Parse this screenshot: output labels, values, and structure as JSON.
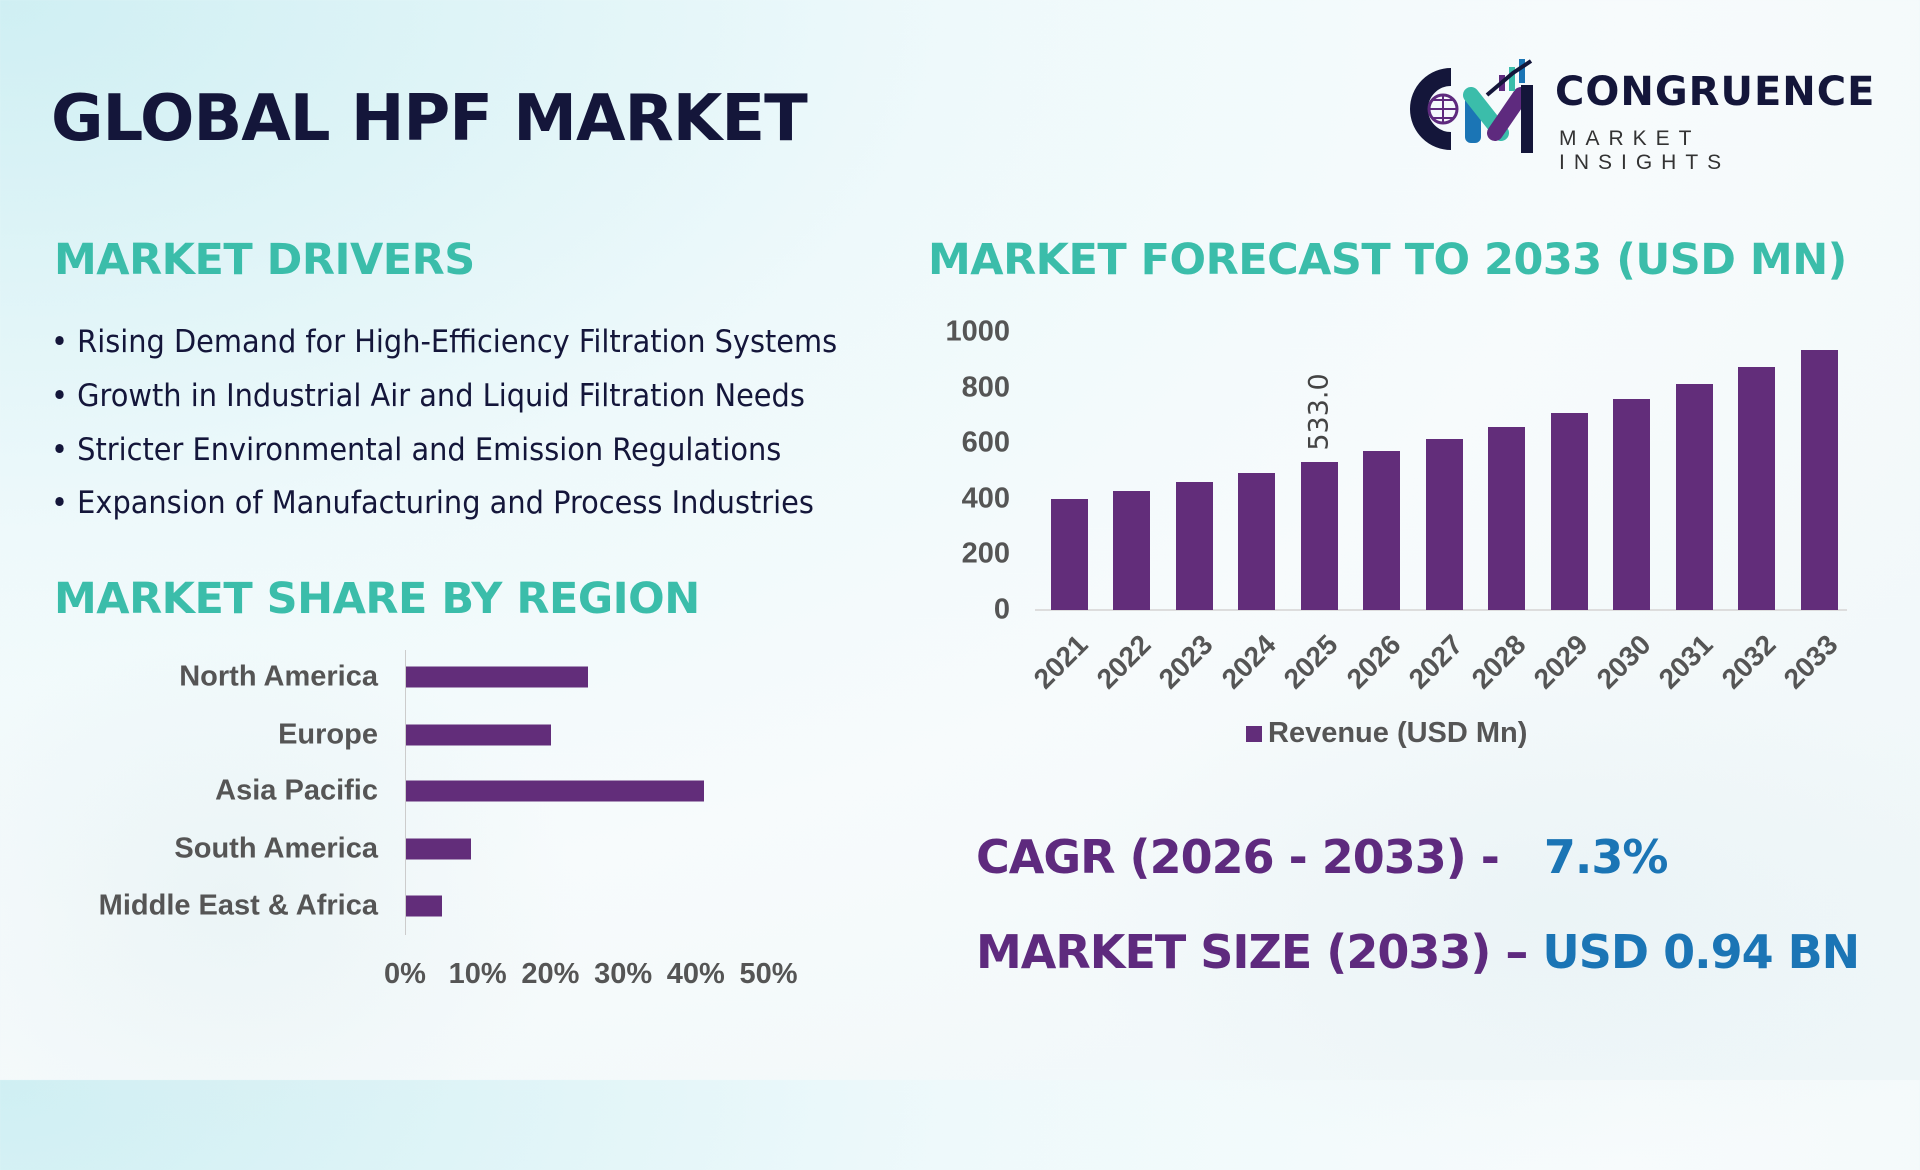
{
  "title": "GLOBAL HPF MARKET",
  "logo": {
    "name": "CONGRUENCE",
    "tagline": "MARKET INSIGHTS"
  },
  "drivers": {
    "heading": "MARKET DRIVERS",
    "items": [
      "• Rising Demand for High-Efficiency Filtration Systems",
      "• Growth in Industrial Air and Liquid Filtration Needs",
      "• Stricter Environmental and Emission Regulations",
      "• Expansion of Manufacturing and Process Industries"
    ]
  },
  "colors": {
    "bar": "#622d7a",
    "heading": "#3bbdaa",
    "title": "#14163a",
    "kpi_value": "#1b75b5"
  },
  "chart_data": [
    {
      "type": "bar",
      "orientation": "horizontal",
      "title": "MARKET SHARE BY REGION",
      "categories": [
        "North America",
        "Europe",
        "Asia Pacific",
        "South America",
        "Middle East & Africa"
      ],
      "values": [
        25,
        20,
        41,
        9,
        5
      ],
      "unit": "%",
      "xlim": [
        0,
        50
      ],
      "xticks": [
        "0%",
        "10%",
        "20%",
        "30%",
        "40%",
        "50%"
      ],
      "grid": false
    },
    {
      "type": "bar",
      "title": "MARKET FORECAST TO 2033 (USD MN)",
      "categories": [
        "2021",
        "2022",
        "2023",
        "2024",
        "2025",
        "2026",
        "2027",
        "2028",
        "2029",
        "2030",
        "2031",
        "2032",
        "2033"
      ],
      "series": [
        {
          "name": "Revenue (USD Mn)",
          "values": [
            400,
            428,
            459,
            494,
            533,
            572,
            614,
            659,
            707,
            758,
            814,
            873,
            937
          ]
        }
      ],
      "ylim": [
        0,
        1000
      ],
      "yticks": [
        "0",
        "200",
        "400",
        "600",
        "800",
        "1000"
      ],
      "data_labels": [
        {
          "category": "2025",
          "text": "533.0"
        }
      ],
      "legend": "bottom",
      "grid": false
    }
  ],
  "kpis": {
    "cagr_label": "CAGR (2026 - 2033) -",
    "cagr_value": "7.3%",
    "size_label": "MARKET SIZE (2033) –",
    "size_value": "USD 0.94 BN"
  }
}
